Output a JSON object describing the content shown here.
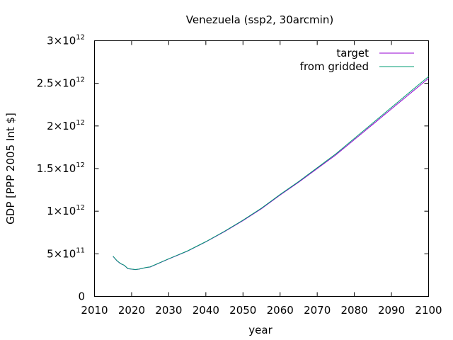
{
  "chart_data": {
    "type": "line",
    "title": "Venezuela (ssp2, 30arcmin)",
    "xlabel": "year",
    "ylabel": "GDP [PPP 2005 Int $]",
    "xlim": [
      2010,
      2100
    ],
    "ylim": [
      0,
      3000000000000
    ],
    "x_ticks": [
      {
        "value": 2010,
        "label": "2010"
      },
      {
        "value": 2020,
        "label": "2020"
      },
      {
        "value": 2030,
        "label": "2030"
      },
      {
        "value": 2040,
        "label": "2040"
      },
      {
        "value": 2050,
        "label": "2050"
      },
      {
        "value": 2060,
        "label": "2060"
      },
      {
        "value": 2070,
        "label": "2070"
      },
      {
        "value": 2080,
        "label": "2080"
      },
      {
        "value": 2090,
        "label": "2090"
      },
      {
        "value": 2100,
        "label": "2100"
      }
    ],
    "y_ticks": [
      {
        "value": 0,
        "mantissa": "0",
        "exp": ""
      },
      {
        "value": 500000000000,
        "mantissa": "5×10",
        "exp": "11"
      },
      {
        "value": 1000000000000,
        "mantissa": "1×10",
        "exp": "12"
      },
      {
        "value": 1500000000000,
        "mantissa": "1.5×10",
        "exp": "12"
      },
      {
        "value": 2000000000000,
        "mantissa": "2×10",
        "exp": "12"
      },
      {
        "value": 2500000000000,
        "mantissa": "2.5×10",
        "exp": "12"
      },
      {
        "value": 3000000000000,
        "mantissa": "3×10",
        "exp": "12"
      }
    ],
    "legend_position": "top-right",
    "grid": false,
    "series": [
      {
        "name": "target",
        "color": "#9400d3",
        "x": [
          2015,
          2016,
          2017,
          2018,
          2019,
          2020,
          2021,
          2022,
          2023,
          2024,
          2025,
          2030,
          2035,
          2040,
          2045,
          2050,
          2055,
          2060,
          2065,
          2070,
          2075,
          2080,
          2085,
          2090,
          2095,
          2100
        ],
        "y": [
          470000000000,
          420000000000,
          385000000000,
          365000000000,
          325000000000,
          320000000000,
          315000000000,
          320000000000,
          330000000000,
          340000000000,
          345000000000,
          440000000000,
          530000000000,
          640000000000,
          760000000000,
          890000000000,
          1030000000000,
          1190000000000,
          1340000000000,
          1500000000000,
          1660000000000,
          1840000000000,
          2020000000000,
          2200000000000,
          2380000000000,
          2560000000000
        ]
      },
      {
        "name": "from gridded",
        "color": "#009e73",
        "x": [
          2015,
          2016,
          2017,
          2018,
          2019,
          2020,
          2021,
          2022,
          2023,
          2024,
          2025,
          2030,
          2035,
          2040,
          2045,
          2050,
          2055,
          2060,
          2065,
          2070,
          2075,
          2080,
          2085,
          2090,
          2095,
          2100
        ],
        "y": [
          472000000000,
          422000000000,
          387000000000,
          366000000000,
          327000000000,
          321000000000,
          316000000000,
          321000000000,
          331000000000,
          341000000000,
          347000000000,
          442000000000,
          533000000000,
          643000000000,
          764000000000,
          895000000000,
          1036000000000,
          1196000000000,
          1348000000000,
          1510000000000,
          1672000000000,
          1854000000000,
          2036000000000,
          2218000000000,
          2400000000000,
          2580000000000
        ]
      }
    ]
  }
}
